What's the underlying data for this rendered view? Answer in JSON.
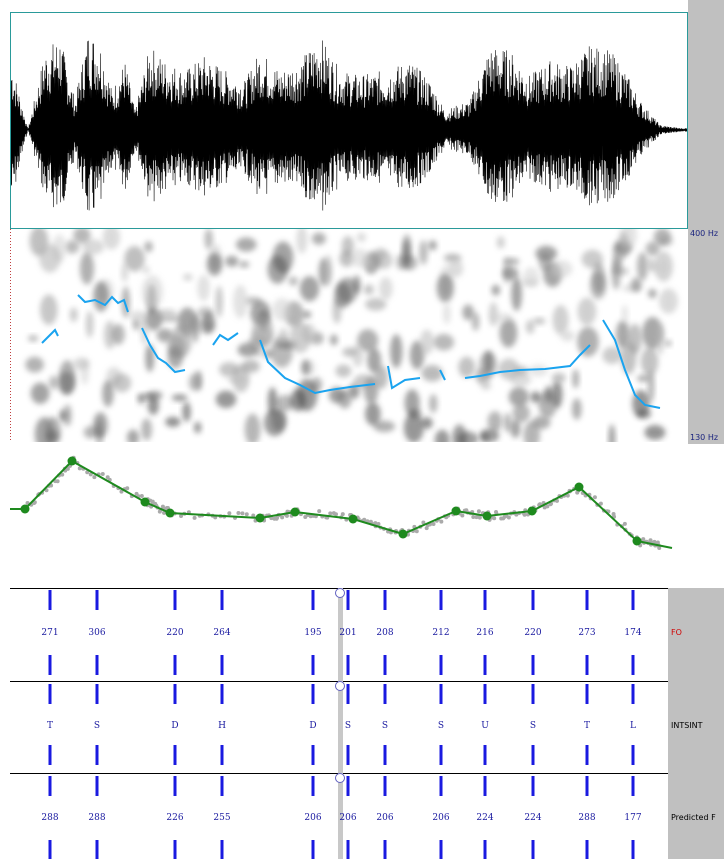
{
  "spectrogram": {
    "top_label": "400 Hz",
    "bottom_label": "130 Hz"
  },
  "tiers": [
    {
      "name": "FO",
      "labels": [
        271,
        306,
        220,
        264,
        195,
        201,
        208,
        212,
        216,
        220,
        273,
        174
      ]
    },
    {
      "name": "INTSINT",
      "labels": [
        "T",
        "S",
        "D",
        "H",
        "D",
        "S",
        "S",
        "S",
        "U",
        "S",
        "T",
        "L"
      ]
    },
    {
      "name": "Predicted F",
      "labels": [
        288,
        288,
        226,
        255,
        206,
        206,
        206,
        206,
        224,
        224,
        288,
        177
      ]
    }
  ]
}
